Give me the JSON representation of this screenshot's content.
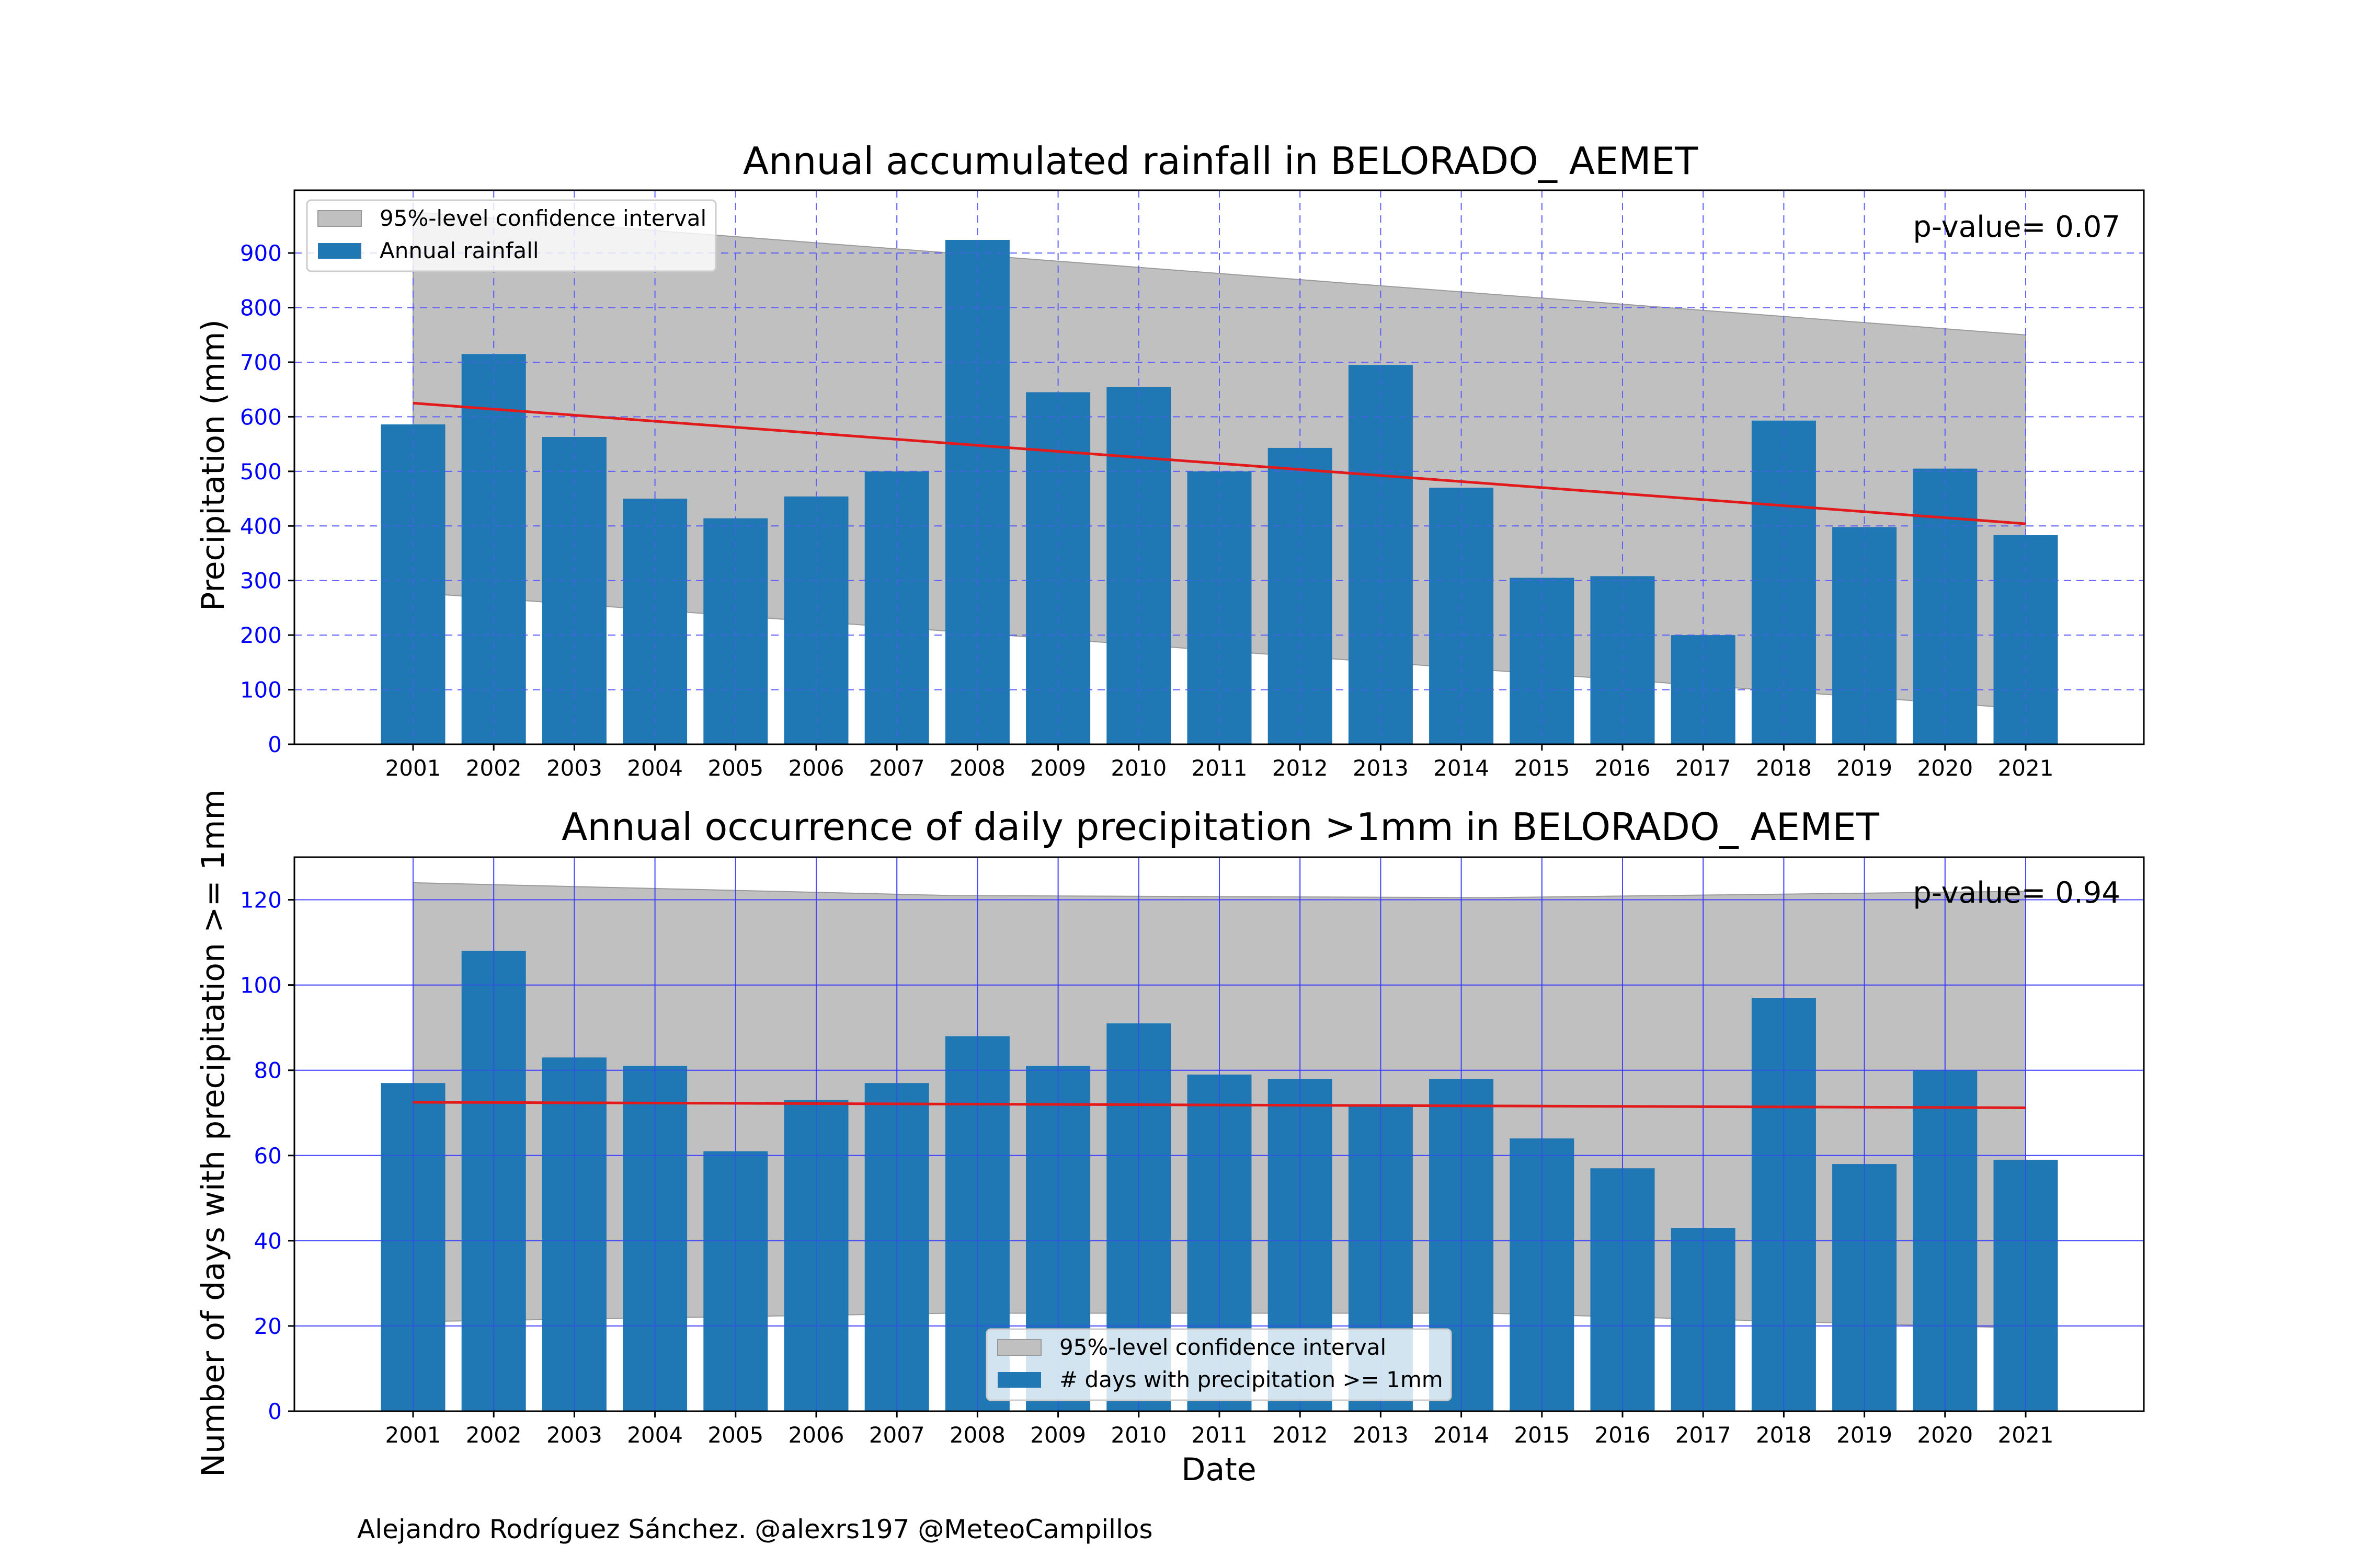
{
  "credit": "Alejandro Rodríguez Sánchez. @alexrs197 @MeteoCampillos",
  "chart_data": [
    {
      "type": "bar",
      "title": "Annual accumulated rainfall in BELORADO_ AEMET",
      "xlabel": "",
      "ylabel": "Precipitation (mm)",
      "ylim": [
        0,
        1015
      ],
      "yticks": [
        0,
        100,
        200,
        300,
        400,
        500,
        600,
        700,
        800,
        900
      ],
      "categories": [
        "2001",
        "2002",
        "2003",
        "2004",
        "2005",
        "2006",
        "2007",
        "2008",
        "2009",
        "2010",
        "2011",
        "2012",
        "2013",
        "2014",
        "2015",
        "2016",
        "2017",
        "2018",
        "2019",
        "2020",
        "2021"
      ],
      "series": [
        {
          "name": "Annual rainfall",
          "values": [
            586,
            715,
            563,
            450,
            414,
            454,
            500,
            924,
            645,
            655,
            500,
            543,
            695,
            470,
            305,
            308,
            200,
            593,
            398,
            505,
            383
          ]
        }
      ],
      "trend": {
        "start": 625,
        "end": 404
      },
      "confidence_band": {
        "name": "95%-level confidence interval",
        "upper": [
          975,
          750
        ],
        "lower": [
          278,
          65
        ]
      },
      "p_value_text": "p-value= 0.07",
      "legend_position": "upper left",
      "grid": "dashed",
      "colors": {
        "bar": "#1f77b4",
        "trend": "#e31a1c",
        "band": "#c0c0c0",
        "grid": "#5a5aff"
      }
    },
    {
      "type": "bar",
      "title": "Annual occurrence of daily precipitation >1mm in BELORADO_ AEMET",
      "xlabel": "Date",
      "ylabel": "Number of days with precipitation >= 1mm",
      "ylim": [
        0,
        130
      ],
      "yticks": [
        0,
        20,
        40,
        60,
        80,
        100,
        120
      ],
      "categories": [
        "2001",
        "2002",
        "2003",
        "2004",
        "2005",
        "2006",
        "2007",
        "2008",
        "2009",
        "2010",
        "2011",
        "2012",
        "2013",
        "2014",
        "2015",
        "2016",
        "2017",
        "2018",
        "2019",
        "2020",
        "2021"
      ],
      "series": [
        {
          "name": "# days with precipitation >= 1mm",
          "values": [
            77,
            108,
            83,
            81,
            61,
            73,
            77,
            88,
            81,
            91,
            79,
            78,
            72,
            78,
            64,
            57,
            43,
            97,
            58,
            80,
            59
          ]
        }
      ],
      "trend": {
        "start": 72.5,
        "end": 71.2
      },
      "confidence_band": {
        "name": "95%-level confidence interval",
        "upper": [
          124,
          121,
          120.5,
          122
        ],
        "lower": [
          21,
          23,
          23,
          19.5
        ]
      },
      "p_value_text": "p-value= 0.94",
      "legend_position": "lower center",
      "grid": "solid",
      "colors": {
        "bar": "#1f77b4",
        "trend": "#e31a1c",
        "band": "#c0c0c0",
        "grid": "#3c3cff"
      }
    }
  ]
}
